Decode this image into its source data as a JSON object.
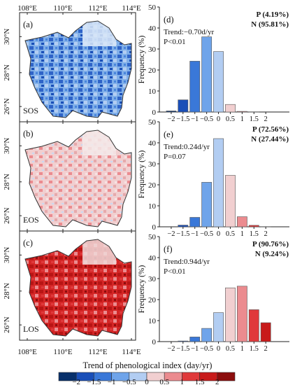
{
  "maps": {
    "top_axis_labels": [
      "108°E",
      "110°E",
      "112°E",
      "114°E"
    ],
    "bottom_axis_labels": [
      "108°E",
      "110°E",
      "112°E",
      "114°E"
    ],
    "lat_labels": [
      "30°N",
      "28°N",
      "26°N"
    ],
    "panels": [
      {
        "letter": "(a)",
        "name": "SOS",
        "scheme": "blue"
      },
      {
        "letter": "(b)",
        "name": "EOS",
        "scheme": "pink"
      },
      {
        "letter": "(c)",
        "name": "LOS",
        "scheme": "red"
      }
    ]
  },
  "chart_data": [
    {
      "type": "bar",
      "panel": "(d)",
      "categories": [
        -2,
        -1.5,
        -1,
        -0.5,
        0,
        0.5,
        1,
        1.5,
        2
      ],
      "values": [
        0.5,
        5.8,
        24.2,
        35.8,
        28.8,
        3.6,
        0.3,
        0.1,
        0
      ],
      "ylabel": "Frequency (%)",
      "ylim": [
        0,
        50
      ],
      "yticks": [
        0,
        10,
        20,
        30,
        40,
        50
      ],
      "xticks": [
        "−2",
        "−1.5",
        "−1",
        "−0.5",
        "0",
        "0.5",
        "1",
        "1.5",
        "2"
      ],
      "trend": "Trend:−0.70d/yr",
      "pvalue": "P<0.01",
      "p_label": "P (4.19%)",
      "n_label": "N (95.81%)"
    },
    {
      "type": "bar",
      "panel": "(e)",
      "categories": [
        -2,
        -1.5,
        -1,
        -0.5,
        0,
        0.5,
        1,
        1.5,
        2
      ],
      "values": [
        0,
        0.8,
        4.5,
        21.2,
        42.0,
        24.5,
        4.8,
        0.7,
        0.1
      ],
      "ylabel": "Frequency (%)",
      "ylim": [
        0,
        50
      ],
      "yticks": [
        0,
        10,
        20,
        30,
        40,
        50
      ],
      "xticks": [
        "−2",
        "−1.5",
        "−1",
        "−0.5",
        "0",
        "0.5",
        "1",
        "1.5",
        "2"
      ],
      "trend": "Trend:0.24d/yr",
      "pvalue": "P=0.07",
      "p_label": "P (72.56%)",
      "n_label": "N (27.44%)"
    },
    {
      "type": "bar",
      "panel": "(f)",
      "categories": [
        -2,
        -1.5,
        -1,
        -0.5,
        0,
        0.5,
        1,
        1.5,
        2
      ],
      "values": [
        0,
        0.3,
        2.2,
        6.3,
        13.8,
        25.6,
        26.4,
        15.2,
        9.0
      ],
      "ylabel": "Frequency (%)",
      "ylim": [
        0,
        50
      ],
      "yticks": [
        0,
        10,
        20,
        30,
        40,
        50
      ],
      "xticks": [
        "−2",
        "−1.5",
        "−1",
        "−0.5",
        "0",
        "0.5",
        "1",
        "1.5",
        "2"
      ],
      "trend": "Trend:0.94d/yr",
      "pvalue": "P<0.01",
      "p_label": "P (90.76%)",
      "n_label": "N (9.24%)"
    }
  ],
  "colorbar": {
    "title": "Trend of phenological index (day/yr)",
    "tick_labels": [
      "−2",
      "−1.5",
      "−1",
      "−0.5",
      "0",
      "0.5",
      "1",
      "1.5",
      "2"
    ],
    "colors": [
      "#08306b",
      "#1a4fb8",
      "#3a78d8",
      "#6fa4ea",
      "#b2cdf2",
      "#f1cfd0",
      "#eb8b8f",
      "#e0393b",
      "#c81a1a",
      "#8c0d0d"
    ]
  },
  "colors": {
    "p_label": "#c0392b",
    "n_label": "#3b73b9",
    "bars": [
      "#08306b",
      "#1a4fb8",
      "#3a78d8",
      "#6fa4ea",
      "#b2cdf2",
      "#f1cfd0",
      "#eb8b8f",
      "#e0393b",
      "#c81a1a"
    ]
  }
}
